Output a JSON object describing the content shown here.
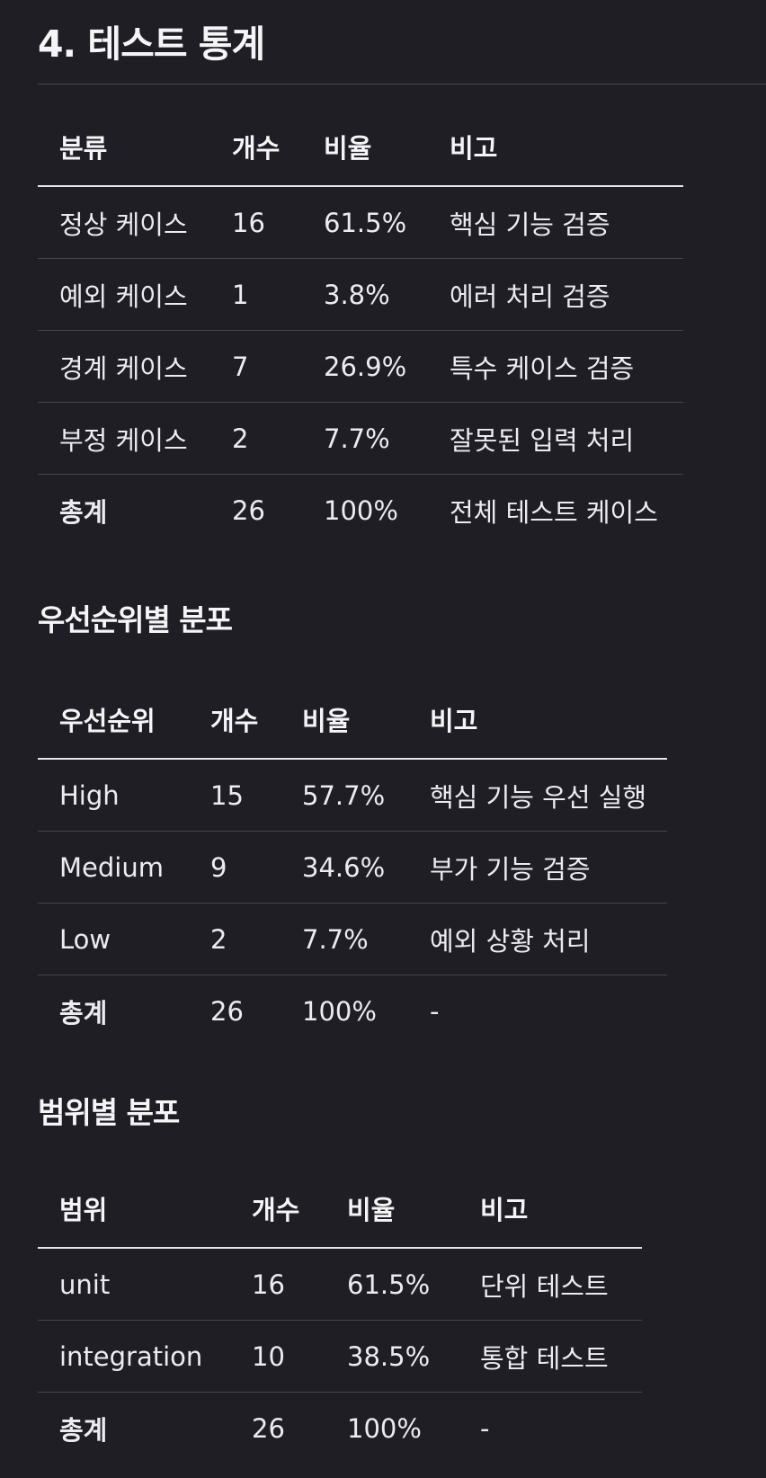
{
  "title": "4. 테스트 통계",
  "table1": {
    "headers": [
      "분류",
      "개수",
      "비율",
      "비고"
    ],
    "rows": [
      [
        "정상 케이스",
        "16",
        "61.5%",
        "핵심 기능 검증"
      ],
      [
        "예외 케이스",
        "1",
        "3.8%",
        "에러 처리 검증"
      ],
      [
        "경계 케이스",
        "7",
        "26.9%",
        "특수 케이스 검증"
      ],
      [
        "부정 케이스",
        "2",
        "7.7%",
        "잘못된 입력 처리"
      ],
      [
        "총계",
        "26",
        "100%",
        "전체 테스트 케이스"
      ]
    ]
  },
  "section2_title": "우선순위별 분포",
  "table2": {
    "headers": [
      "우선순위",
      "개수",
      "비율",
      "비고"
    ],
    "rows": [
      [
        "High",
        "15",
        "57.7%",
        "핵심 기능 우선 실행"
      ],
      [
        "Medium",
        "9",
        "34.6%",
        "부가 기능 검증"
      ],
      [
        "Low",
        "2",
        "7.7%",
        "예외 상황 처리"
      ],
      [
        "총계",
        "26",
        "100%",
        "-"
      ]
    ]
  },
  "section3_title": "범위별 분포",
  "table3": {
    "headers": [
      "범위",
      "개수",
      "비율",
      "비고"
    ],
    "rows": [
      [
        "unit",
        "16",
        "61.5%",
        "단위 테스트"
      ],
      [
        "integration",
        "10",
        "38.5%",
        "통합 테스트"
      ],
      [
        "총계",
        "26",
        "100%",
        "-"
      ]
    ]
  }
}
